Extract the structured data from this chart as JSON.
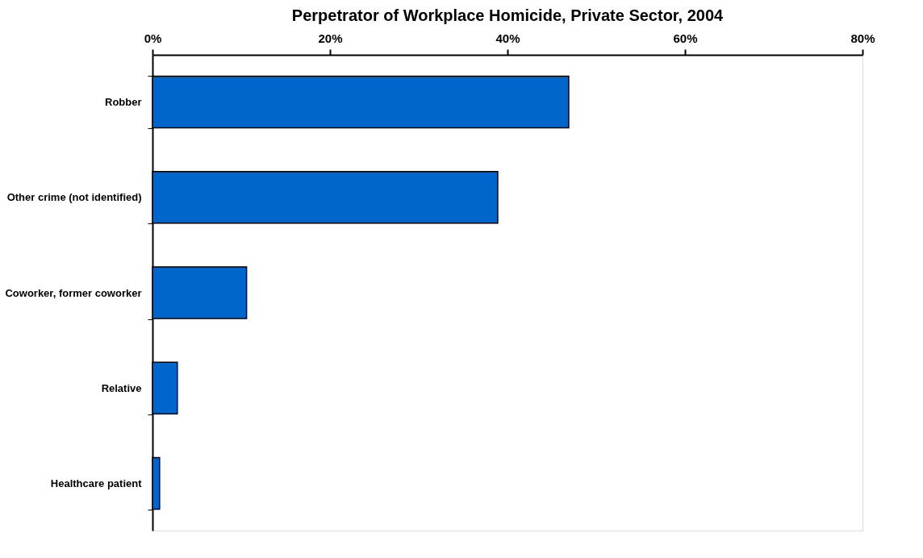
{
  "chart_data": {
    "type": "bar",
    "orientation": "horizontal",
    "title": "Perpetrator of Workplace Homicide, Private Sector, 2004",
    "categories": [
      "Robber",
      "Other crime (not identified)",
      "Coworker, former coworker",
      "Relative",
      "Healthcare patient"
    ],
    "values": [
      46.9,
      38.9,
      10.6,
      2.8,
      0.8
    ],
    "color": "#0066cc",
    "xlim": [
      0,
      80
    ],
    "xticks": [
      {
        "value": 0,
        "label": "0%"
      },
      {
        "value": 20,
        "label": "20%"
      },
      {
        "value": 40,
        "label": "40%"
      },
      {
        "value": 60,
        "label": "60%"
      },
      {
        "value": 80,
        "label": "80%"
      }
    ],
    "grid": false
  }
}
